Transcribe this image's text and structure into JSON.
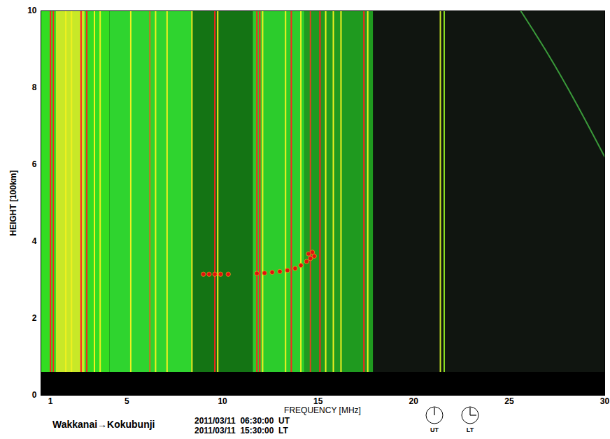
{
  "chart_data": {
    "type": "ionogram",
    "title": "Wakkanai→Kokubunji",
    "subtitle": [
      "2011/03/11  06:30:00  UT",
      "2011/03/11  15:30:00  LT"
    ],
    "clocks": [
      "UT",
      "LT"
    ],
    "xlabel": "FREQUENCY [MHz]",
    "ylabel": "HEIGHT [100km]",
    "xlim": [
      0.5,
      30
    ],
    "xticks": [
      1,
      5,
      10,
      15,
      20,
      25,
      30
    ],
    "ylim": [
      0,
      10
    ],
    "yticks": [
      0,
      2,
      4,
      6,
      8,
      10
    ],
    "floor": 0.6,
    "bands": {
      "x1": [
        0.5,
        1.3,
        4.1,
        8.4,
        11.6,
        14.3,
        17.9
      ],
      "x2": [
        4.1,
        2.8,
        8.4,
        11.6,
        14.3,
        17.9,
        30
      ],
      "colors": [
        "#33dd22",
        "#c8e828",
        "#2fd42f",
        "#147414",
        "#2ccc2c",
        "#1f9a1f",
        "#101510"
      ]
    },
    "lines": {
      "x": [
        1.0,
        1.15,
        1.8,
        2.1,
        2.6,
        2.9,
        3.3,
        3.6,
        5.2,
        6.2,
        6.5,
        7.1,
        8.4,
        9.6,
        9.75,
        11.8,
        11.95,
        12.1,
        13.3,
        13.6,
        14.1,
        14.6,
        15.1,
        15.4,
        15.8,
        16.2,
        17.4,
        17.6,
        21.4,
        21.6
      ],
      "colors": [
        "#ff2020",
        "#ff2020",
        "#f0f020",
        "#f0f020",
        "#ff2020",
        "#ff2020",
        "#f0f020",
        "#f0f020",
        "#f0f020",
        "#d07020",
        "#f0f020",
        "#f0f020",
        "#f0f020",
        "#ff2020",
        "#f0f020",
        "#ff2020",
        "#ff2020",
        "#f0f020",
        "#f0f020",
        "#ff2020",
        "#f0f020",
        "#e04020",
        "#ff2020",
        "#f0f020",
        "#f0f020",
        "#f0f020",
        "#ff2020",
        "#f0f020",
        "#c8e828",
        "#88dd22"
      ]
    },
    "series": [
      {
        "type": "scatter",
        "color": "#e01010",
        "x": [
          9.0,
          9.3,
          9.6,
          9.9,
          10.3,
          11.8,
          12.2,
          12.6,
          13.0,
          13.4,
          13.8,
          14.1,
          14.4,
          14.6,
          14.8,
          14.7,
          14.5
        ],
        "values": [
          3.15,
          3.15,
          3.15,
          3.15,
          3.15,
          3.17,
          3.18,
          3.2,
          3.22,
          3.25,
          3.3,
          3.38,
          3.48,
          3.56,
          3.62,
          3.72,
          3.68
        ]
      },
      {
        "type": "line",
        "color": "#3a9a3a",
        "x": [
          25.6,
          27.0,
          28.5,
          30.0
        ],
        "values": [
          10.0,
          8.9,
          7.6,
          6.2
        ]
      }
    ]
  }
}
